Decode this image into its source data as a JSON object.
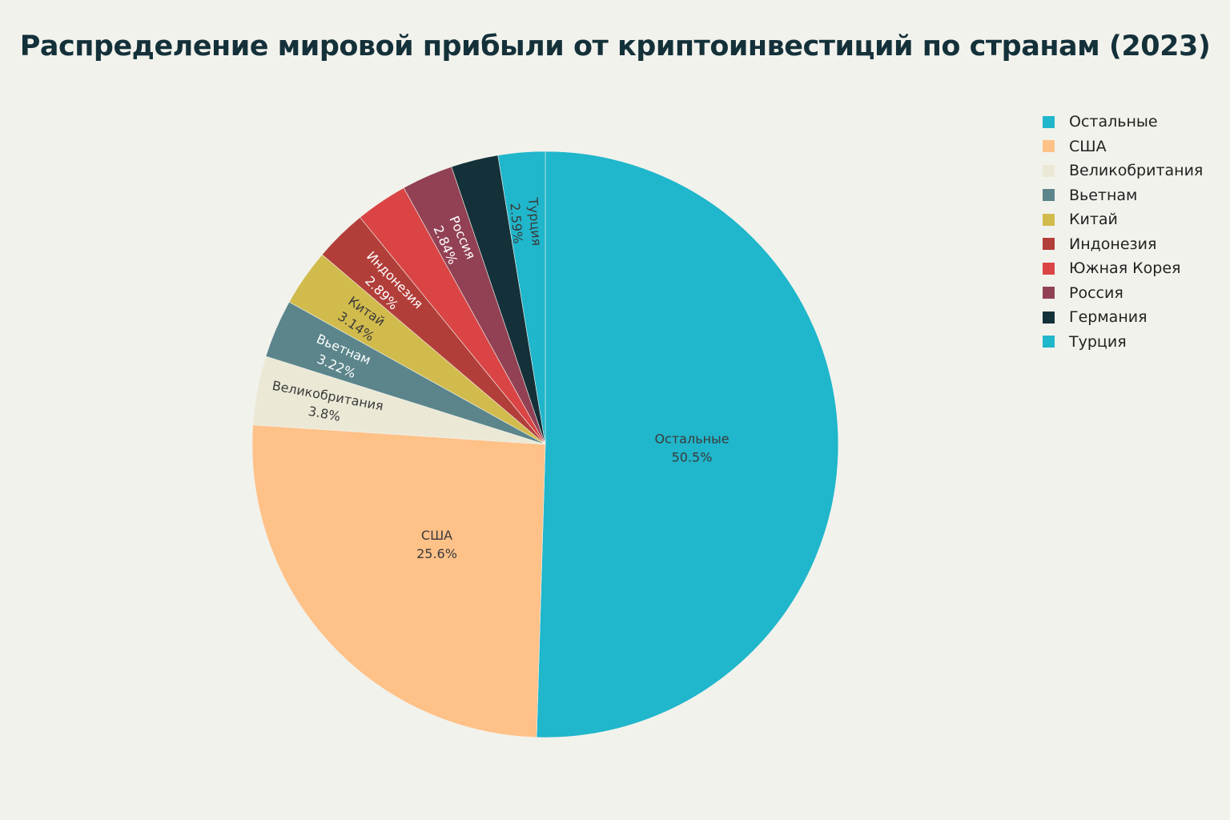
{
  "chart_data": {
    "type": "pie",
    "title": "Распределение мировой прибыли от криптоинвестиций по странам (2023)",
    "slices": [
      {
        "name": "Остальные",
        "value": 50.5,
        "label": "50.5%",
        "color": "#20b6cb",
        "text_color": "#3a3a3a"
      },
      {
        "name": "США",
        "value": 25.6,
        "label": "25.6%",
        "color": "#fec188",
        "text_color": "#3a3a3a"
      },
      {
        "name": "Великобритания",
        "value": 3.8,
        "label": "3.8%",
        "color": "#ebe9d6",
        "text_color": "#3a3a3a"
      },
      {
        "name": "Вьетнам",
        "value": 3.22,
        "label": "3.22%",
        "color": "#5b858b",
        "text_color": "#ffffff"
      },
      {
        "name": "Китай",
        "value": 3.14,
        "label": "3.14%",
        "color": "#d1bb4d",
        "text_color": "#3a3a3a"
      },
      {
        "name": "Индонезия",
        "value": 2.89,
        "label": "2.89%",
        "color": "#b23e3a",
        "text_color": "#ffffff"
      },
      {
        "name": "Южная Корея",
        "value": 2.87,
        "label": "",
        "color": "#da4444",
        "text_color": "#ffffff"
      },
      {
        "name": "Россия",
        "value": 2.84,
        "label": "2.84%",
        "color": "#924155",
        "text_color": "#ffffff"
      },
      {
        "name": "Германия",
        "value": 2.6,
        "label": "",
        "color": "#14313a",
        "text_color": "#ffffff"
      },
      {
        "name": "Турция",
        "value": 2.59,
        "label": "2.59%",
        "color": "#20b6cb",
        "text_color": "#3a3a3a"
      }
    ],
    "legend_position": "right"
  }
}
